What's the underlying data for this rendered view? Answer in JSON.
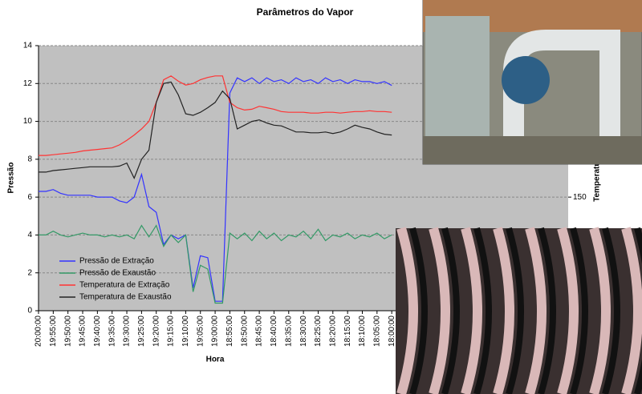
{
  "chart_data": {
    "type": "line",
    "title": "Parâmetros do Vapor",
    "x_label": "Hora",
    "y_label": "Pressão",
    "y2_label": "Temperatura",
    "categories": [
      "20:00:00",
      null,
      "19:55:00",
      null,
      "19:50:00",
      null,
      "19:45:00",
      null,
      "19:40:00",
      null,
      "19:35:00",
      null,
      "19:30:00",
      null,
      "19:25:00",
      null,
      "19:20:00",
      null,
      "19:15:00",
      null,
      "19:10:00",
      null,
      "19:05:00",
      null,
      "19:00:00",
      null,
      "18:55:00",
      null,
      "18:50:00",
      null,
      "18:45:00",
      null,
      "18:40:00",
      null,
      "18:35:00",
      null,
      "18:30:00",
      null,
      "18:25:00",
      null,
      "18:20:00",
      null,
      "18:15:00",
      null,
      "18:10:00",
      null,
      "18:05:00",
      null,
      "18:00:00"
    ],
    "ylim": [
      0,
      14
    ],
    "yticks": [
      0,
      2,
      4,
      6,
      8,
      10,
      12,
      14
    ],
    "y2lim": [
      0,
      350
    ],
    "y2ticks": [
      150
    ],
    "grid": true,
    "legend": "lower left",
    "series": [
      {
        "name": "Pressão de Extração",
        "color": "#3333ff",
        "values": [
          6.3,
          6.3,
          6.4,
          6.2,
          6.1,
          6.1,
          6.1,
          6.1,
          6.0,
          6.0,
          6.0,
          5.8,
          5.7,
          6.0,
          7.2,
          5.5,
          5.2,
          3.5,
          4.0,
          3.8,
          4.0,
          1.2,
          2.9,
          2.8,
          0.5,
          0.5,
          11.5,
          12.3,
          12.1,
          12.3,
          12.0,
          12.3,
          12.1,
          12.2,
          12.0,
          12.3,
          12.1,
          12.2,
          12.0,
          12.3,
          12.1,
          12.2,
          12.0,
          12.2,
          12.1,
          12.1,
          12.0,
          12.1,
          11.9
        ]
      },
      {
        "name": "Pressão de Exaustão",
        "color": "#339966",
        "values": [
          4.0,
          4.0,
          4.2,
          4.0,
          3.9,
          4.0,
          4.1,
          4.0,
          4.0,
          3.9,
          4.0,
          3.9,
          4.0,
          3.8,
          4.5,
          3.9,
          4.5,
          3.4,
          4.0,
          3.6,
          4.0,
          1.0,
          2.4,
          2.2,
          0.4,
          0.4,
          4.1,
          3.8,
          4.1,
          3.7,
          4.2,
          3.8,
          4.1,
          3.7,
          4.0,
          3.9,
          4.2,
          3.8,
          4.3,
          3.7,
          4.0,
          3.9,
          4.1,
          3.8,
          4.0,
          3.9,
          4.1,
          3.8,
          4.0
        ]
      },
      {
        "name": "Temperatura de Extração",
        "color": "#ff3333",
        "axis": "y2",
        "values": [
          205,
          205,
          206,
          207,
          208,
          209,
          211,
          212,
          213,
          214,
          215,
          219,
          225,
          232,
          240,
          250,
          275,
          305,
          310,
          303,
          298,
          300,
          305,
          308,
          310,
          310,
          275,
          268,
          265,
          266,
          270,
          268,
          266,
          263,
          262,
          262,
          262,
          261,
          261,
          262,
          262,
          261,
          262,
          263,
          263,
          264,
          263,
          263,
          262
        ]
      },
      {
        "name": "Temperatura de Exaustão",
        "color": "#222222",
        "axis": "y2",
        "values": [
          183,
          183,
          185,
          186,
          187,
          188,
          189,
          190,
          190,
          190,
          190,
          191,
          195,
          175,
          200,
          212,
          275,
          300,
          302,
          285,
          260,
          258,
          262,
          268,
          275,
          290,
          280,
          240,
          245,
          250,
          252,
          248,
          245,
          244,
          240,
          236,
          236,
          235,
          235,
          236,
          234,
          236,
          240,
          245,
          242,
          240,
          236,
          233,
          232
        ]
      }
    ]
  }
}
